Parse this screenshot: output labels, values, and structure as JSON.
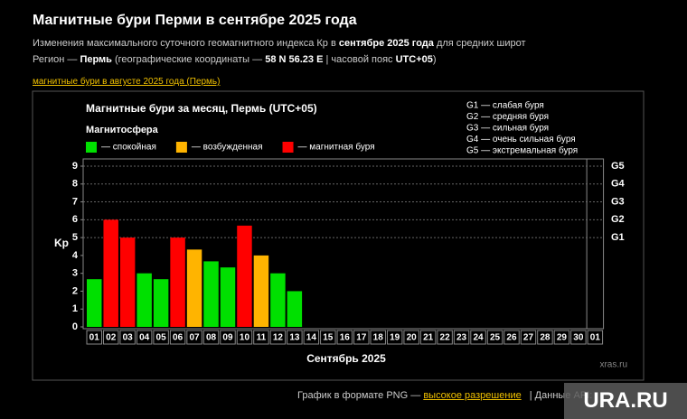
{
  "header": {
    "title": "Магнитные бури Перми в сентябре 2025 года",
    "line1": [
      "Изменения максимального суточного геомагнитного индекса Кр в ",
      "сентябре 2025 года",
      " для средних широт"
    ],
    "line2": [
      "Регион — ",
      "Пермь",
      " (географические координаты — ",
      "58 N 56.23 E",
      " | часовой пояс ",
      "UTC+05",
      ")"
    ],
    "link": "магнитные бури в августе 2025 года (Пермь)"
  },
  "chart_data": {
    "type": "bar",
    "title": "Магнитные бури за месяц, Пермь (UTC+05)",
    "legend_title": "Магнитосфера",
    "legend": [
      {
        "name": "— спокойная",
        "color": "#00e000"
      },
      {
        "name": "— возбужденная",
        "color": "#ffb400"
      },
      {
        "name": "— магнитная буря",
        "color": "#ff0000"
      }
    ],
    "storm_levels": [
      "G1 — слабая буря",
      "G2 — средняя буря",
      "G3 — сильная буря",
      "G4 — очень сильная буря",
      "G5 — экстремальная буря"
    ],
    "y_label": "Kp",
    "x_label": "Сентябрь 2025",
    "credit": "xras.ru",
    "categories": [
      "01",
      "02",
      "03",
      "04",
      "05",
      "06",
      "07",
      "08",
      "09",
      "10",
      "11",
      "12",
      "13",
      "14",
      "15",
      "16",
      "17",
      "18",
      "19",
      "20",
      "21",
      "22",
      "23",
      "24",
      "25",
      "26",
      "27",
      "28",
      "29",
      "30",
      "01"
    ],
    "values": [
      2.67,
      6,
      5,
      3,
      2.67,
      5,
      4.33,
      3.67,
      3.33,
      5.67,
      4,
      3,
      2,
      null,
      null,
      null,
      null,
      null,
      null,
      null,
      null,
      null,
      null,
      null,
      null,
      null,
      null,
      null,
      null,
      null,
      null
    ],
    "colors": [
      "#00e000",
      "#ff0000",
      "#ff0000",
      "#00e000",
      "#00e000",
      "#ff0000",
      "#ffb400",
      "#00e000",
      "#00e000",
      "#ff0000",
      "#ffb400",
      "#00e000",
      "#00e000",
      null,
      null,
      null,
      null,
      null,
      null,
      null,
      null,
      null,
      null,
      null,
      null,
      null,
      null,
      null,
      null,
      null,
      null
    ],
    "ylim": [
      0,
      9
    ],
    "yticks": [
      0,
      1,
      2,
      3,
      4,
      5,
      6,
      7,
      8,
      9
    ],
    "y2lim": [
      0,
      9
    ],
    "y2ticks": [
      {
        "value": 5,
        "label": "G1"
      },
      {
        "value": 6,
        "label": "G2"
      },
      {
        "value": 7,
        "label": "G3"
      },
      {
        "value": 8,
        "label": "G4"
      },
      {
        "value": 9,
        "label": "G5"
      }
    ],
    "grid": true
  },
  "footer": {
    "text": "График в формате PNG — ",
    "link": "высокое разрешение",
    "api": "|  Данные API:"
  },
  "watermark": "URA.RU"
}
